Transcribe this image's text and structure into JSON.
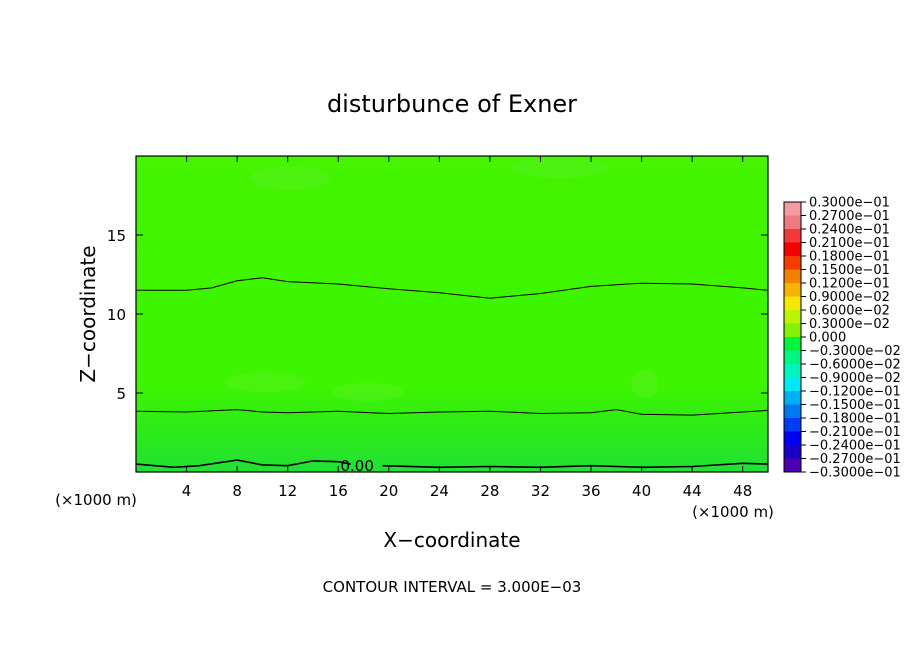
{
  "chart_data": {
    "type": "heatmap",
    "title": "disturbunce of Exner",
    "xlabel": "X−coordinate",
    "ylabel": "Z−coordinate",
    "x_unit": "(×1000 m)",
    "y_unit": "(×1000 m)",
    "footer": "CONTOUR INTERVAL = 3.000E−03",
    "xlim": [
      0,
      50
    ],
    "ylim": [
      0,
      20
    ],
    "xticks": [
      {
        "value": 4,
        "label": "4"
      },
      {
        "value": 8,
        "label": "8"
      },
      {
        "value": 12,
        "label": "12"
      },
      {
        "value": 16,
        "label": "16"
      },
      {
        "value": 20,
        "label": "20"
      },
      {
        "value": 24,
        "label": "24"
      },
      {
        "value": 28,
        "label": "28"
      },
      {
        "value": 32,
        "label": "32"
      },
      {
        "value": 36,
        "label": "36"
      },
      {
        "value": 40,
        "label": "40"
      },
      {
        "value": 44,
        "label": "44"
      },
      {
        "value": 48,
        "label": "48"
      }
    ],
    "yticks": [
      {
        "value": 5,
        "label": "5"
      },
      {
        "value": 10,
        "label": "10"
      },
      {
        "value": 15,
        "label": "15"
      }
    ],
    "fill_colors": {
      "upper": "#44f400",
      "middle": "#3ef500",
      "lower": "#2ae81e",
      "bottom": "#22e036",
      "highlight": "#5aef24"
    },
    "contour_lines": [
      {
        "label": "",
        "points": [
          [
            0,
            11.5
          ],
          [
            4,
            11.5
          ],
          [
            6,
            11.65
          ],
          [
            8,
            12.1
          ],
          [
            10,
            12.3
          ],
          [
            12,
            12.05
          ],
          [
            16,
            11.9
          ],
          [
            20,
            11.6
          ],
          [
            24,
            11.35
          ],
          [
            28,
            11.0
          ],
          [
            32,
            11.3
          ],
          [
            36,
            11.75
          ],
          [
            40,
            11.95
          ],
          [
            44,
            11.9
          ],
          [
            48,
            11.65
          ],
          [
            50,
            11.5
          ]
        ]
      },
      {
        "label": "",
        "points": [
          [
            0,
            3.85
          ],
          [
            4,
            3.8
          ],
          [
            8,
            3.95
          ],
          [
            10,
            3.8
          ],
          [
            12,
            3.75
          ],
          [
            16,
            3.85
          ],
          [
            20,
            3.7
          ],
          [
            24,
            3.8
          ],
          [
            28,
            3.85
          ],
          [
            32,
            3.7
          ],
          [
            36,
            3.75
          ],
          [
            38,
            3.95
          ],
          [
            40,
            3.65
          ],
          [
            44,
            3.6
          ],
          [
            48,
            3.8
          ],
          [
            50,
            3.9
          ]
        ]
      },
      {
        "label": "0.00",
        "label_x": 17.5,
        "points": [
          [
            0,
            0.5
          ],
          [
            3,
            0.3
          ],
          [
            5,
            0.4
          ],
          [
            8,
            0.75
          ],
          [
            10,
            0.45
          ],
          [
            12,
            0.4
          ],
          [
            14,
            0.7
          ],
          [
            16,
            0.65
          ],
          [
            17,
            0.5
          ]
        ],
        "points2": [
          [
            19.5,
            0.4
          ],
          [
            24,
            0.3
          ],
          [
            28,
            0.35
          ],
          [
            32,
            0.3
          ],
          [
            36,
            0.4
          ],
          [
            40,
            0.3
          ],
          [
            44,
            0.35
          ],
          [
            48,
            0.55
          ],
          [
            50,
            0.5
          ]
        ]
      }
    ],
    "colorbar": {
      "levels": [
        {
          "label": "0.3000e−01",
          "color": "#f49aa2"
        },
        {
          "label": "0.2700e−01",
          "color": "#f07880"
        },
        {
          "label": "0.2400e−01",
          "color": "#f43838"
        },
        {
          "label": "0.2100e−01",
          "color": "#f40000"
        },
        {
          "label": "0.1800e−01",
          "color": "#f43c00"
        },
        {
          "label": "0.1500e−01",
          "color": "#f48000"
        },
        {
          "label": "0.1200e−01",
          "color": "#f4b400"
        },
        {
          "label": "0.9000e−02",
          "color": "#f4e800"
        },
        {
          "label": "0.6000e−02",
          "color": "#bcf400"
        },
        {
          "label": "0.3000e−02",
          "color": "#80f400"
        },
        {
          "label": "0.000",
          "color": "#44f400"
        },
        {
          "label": "−0.3000e−02",
          "color": "#00f440"
        },
        {
          "label": "−0.6000e−02",
          "color": "#00f480"
        },
        {
          "label": "−0.9000e−02",
          "color": "#00f4bc"
        },
        {
          "label": "−0.1200e−01",
          "color": "#00e8f4"
        },
        {
          "label": "−0.1500e−01",
          "color": "#00b0f4"
        },
        {
          "label": "−0.1800e−01",
          "color": "#0078f4"
        },
        {
          "label": "−0.2100e−01",
          "color": "#003cf4"
        },
        {
          "label": "−0.2400e−01",
          "color": "#0000f4"
        },
        {
          "label": "−0.2700e−01",
          "color": "#1c00c8"
        },
        {
          "label": "−0.3000e−01",
          "color": "#4c00b0"
        }
      ]
    }
  }
}
